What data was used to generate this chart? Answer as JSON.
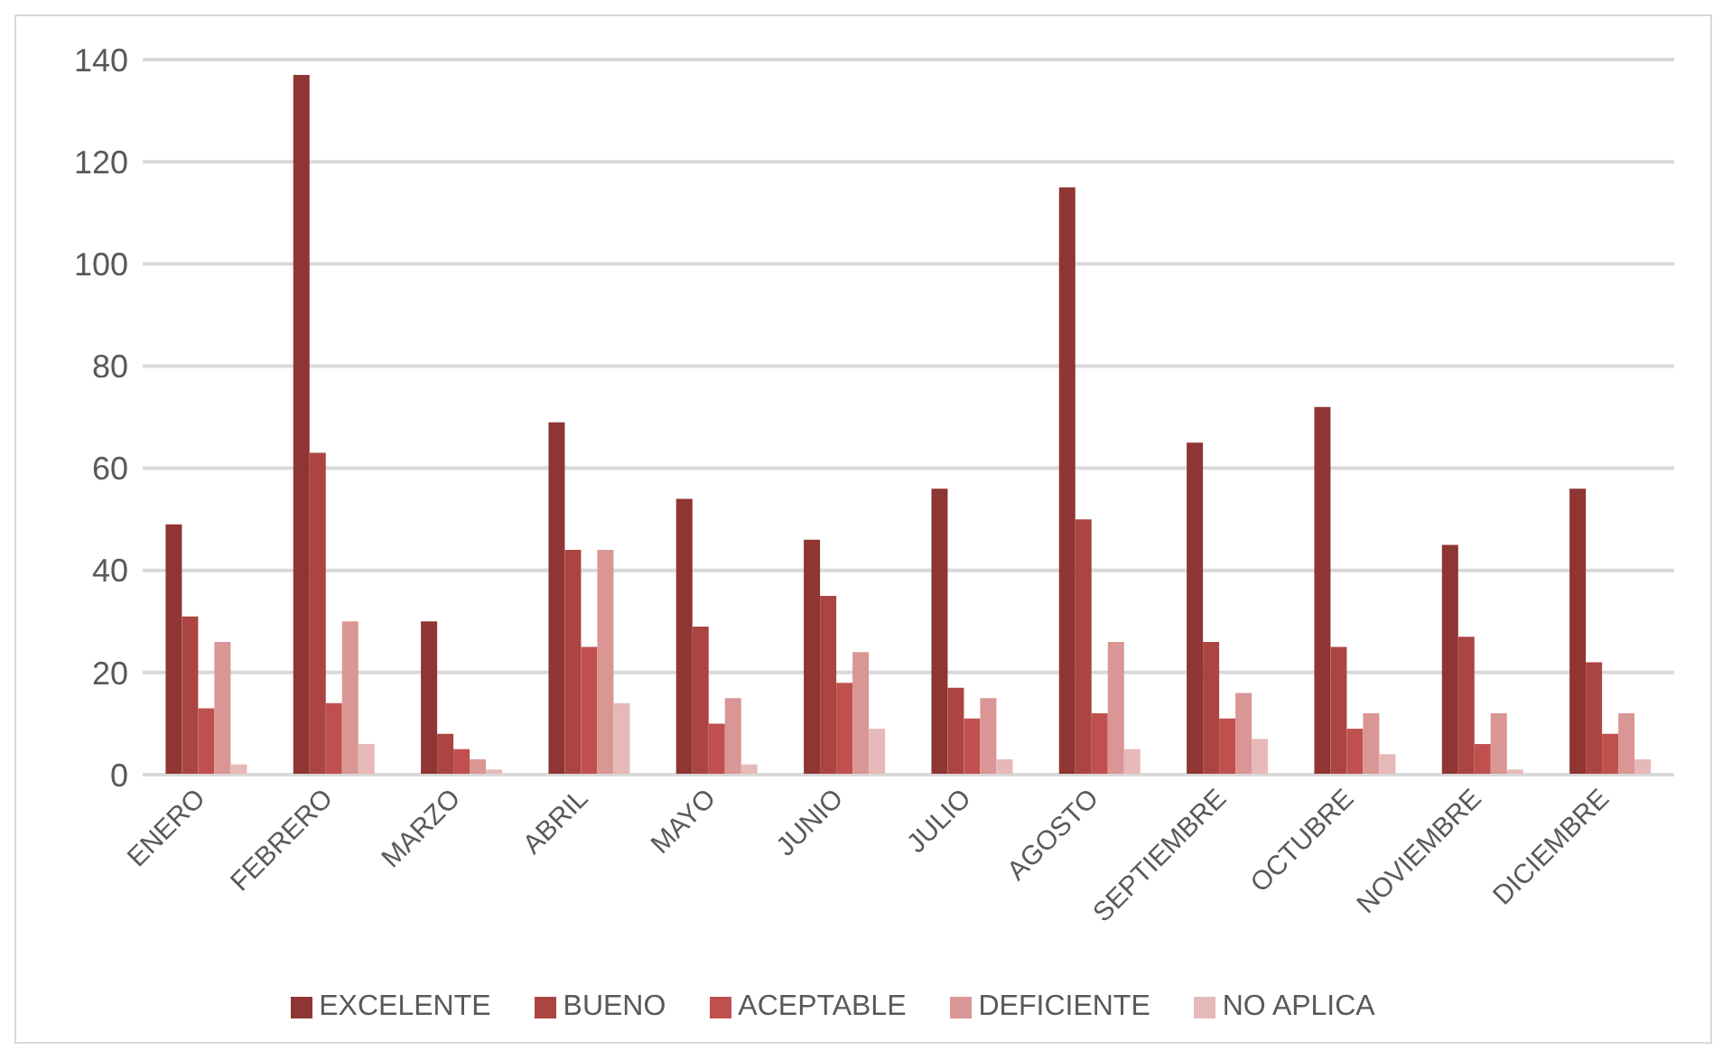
{
  "chart_data": {
    "type": "bar",
    "categories": [
      "ENERO",
      "FEBRERO",
      "MARZO",
      "ABRIL",
      "MAYO",
      "JUNIO",
      "JULIO",
      "AGOSTO",
      "SEPTIEMBRE",
      "OCTUBRE",
      "NOVIEMBRE",
      "DICIEMBRE"
    ],
    "series": [
      {
        "name": "EXCELENTE",
        "color": "#8f3533",
        "values": [
          49,
          137,
          30,
          69,
          54,
          46,
          56,
          115,
          65,
          72,
          45,
          56
        ]
      },
      {
        "name": "BUENO",
        "color": "#ab4542",
        "values": [
          31,
          63,
          8,
          44,
          29,
          35,
          17,
          50,
          26,
          25,
          27,
          22
        ]
      },
      {
        "name": "ACEPTABLE",
        "color": "#c0504d",
        "values": [
          13,
          14,
          5,
          25,
          10,
          18,
          11,
          12,
          11,
          9,
          6,
          8
        ]
      },
      {
        "name": "DEFICIENTE",
        "color": "#d99694",
        "values": [
          26,
          30,
          3,
          44,
          15,
          24,
          15,
          26,
          16,
          12,
          12,
          12
        ]
      },
      {
        "name": "NO APLICA",
        "color": "#e6b9b8",
        "values": [
          2,
          6,
          1,
          14,
          2,
          9,
          3,
          5,
          7,
          4,
          1,
          3
        ]
      }
    ],
    "ylim": [
      0,
      140
    ],
    "yticks": [
      0,
      20,
      40,
      60,
      80,
      100,
      120,
      140
    ],
    "grid": "y",
    "legend": "bottom"
  }
}
